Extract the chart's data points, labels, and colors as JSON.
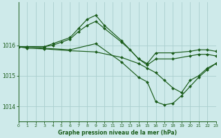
{
  "title": "Graphe pression niveau de la mer (hPa)",
  "background_color": "#ceeaea",
  "grid_color": "#aacece",
  "line_color": "#1a5c1a",
  "xlim": [
    0,
    23
  ],
  "ylim": [
    1013.5,
    1017.4
  ],
  "yticks": [
    1014,
    1015,
    1016
  ],
  "xticks": [
    0,
    1,
    2,
    3,
    4,
    5,
    6,
    7,
    8,
    9,
    10,
    11,
    12,
    13,
    14,
    15,
    16,
    17,
    18,
    19,
    20,
    21,
    22,
    23
  ],
  "series": [
    {
      "x": [
        0,
        1,
        3,
        4,
        6,
        7,
        8,
        9,
        10,
        12,
        14,
        15,
        16,
        18,
        20,
        21,
        22,
        23
      ],
      "y": [
        1015.95,
        1015.95,
        1015.95,
        1016.05,
        1016.25,
        1016.55,
        1016.85,
        1016.98,
        1016.65,
        1016.15,
        1015.55,
        1015.4,
        1015.75,
        1015.75,
        1015.8,
        1015.85,
        1015.85,
        1015.8
      ]
    },
    {
      "x": [
        0,
        1,
        3,
        4,
        5,
        6,
        7,
        8,
        9,
        10,
        12,
        13,
        14,
        15,
        16,
        18,
        20,
        21,
        22,
        23
      ],
      "y": [
        1015.95,
        1015.95,
        1015.95,
        1016.0,
        1016.1,
        1016.2,
        1016.45,
        1016.65,
        1016.78,
        1016.55,
        1016.1,
        1015.85,
        1015.55,
        1015.35,
        1015.55,
        1015.55,
        1015.65,
        1015.7,
        1015.7,
        1015.65
      ]
    },
    {
      "x": [
        0,
        1,
        3,
        6,
        9,
        12,
        14,
        15,
        16,
        17,
        18,
        19,
        20,
        21,
        22,
        23
      ],
      "y": [
        1015.95,
        1015.95,
        1015.9,
        1015.85,
        1016.05,
        1015.45,
        1014.95,
        1014.8,
        1014.15,
        1014.05,
        1014.1,
        1014.35,
        1014.65,
        1014.95,
        1015.2,
        1015.4
      ]
    },
    {
      "x": [
        0,
        1,
        3,
        6,
        9,
        12,
        14,
        15,
        16,
        17,
        18,
        19,
        20,
        21,
        22,
        23
      ],
      "y": [
        1015.95,
        1015.9,
        1015.88,
        1015.82,
        1015.78,
        1015.6,
        1015.4,
        1015.25,
        1015.1,
        1014.85,
        1014.6,
        1014.45,
        1014.85,
        1015.0,
        1015.25,
        1015.4
      ]
    }
  ]
}
